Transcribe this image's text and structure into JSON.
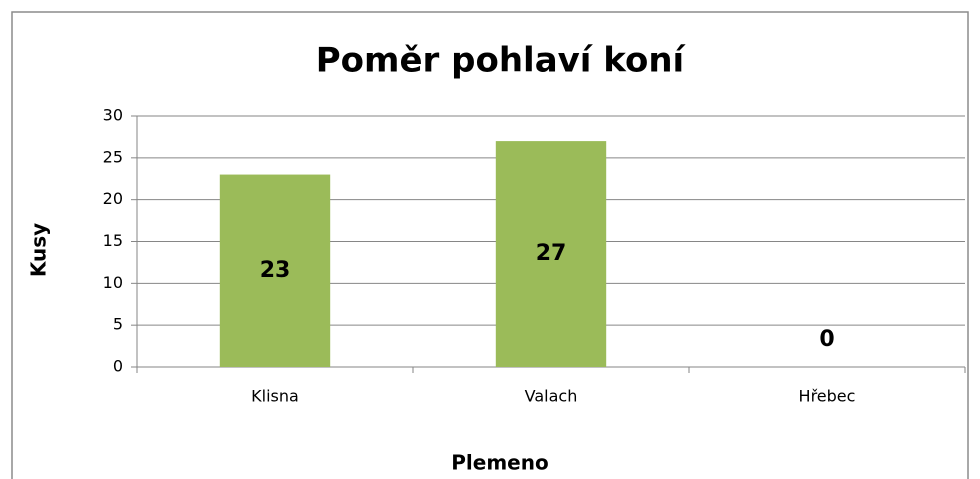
{
  "chart_data": {
    "type": "bar",
    "title": "Poměr pohlaví koní",
    "categories": [
      "Klisna",
      "Valach",
      "Hřebec"
    ],
    "values": [
      23,
      27,
      0
    ],
    "color": "#9bbb59",
    "x_label": "Plemeno",
    "y_label": "Kusy",
    "ylim": [
      0,
      30
    ],
    "yticks": [
      0,
      5,
      10,
      15,
      20,
      25,
      30
    ],
    "grid": true
  }
}
